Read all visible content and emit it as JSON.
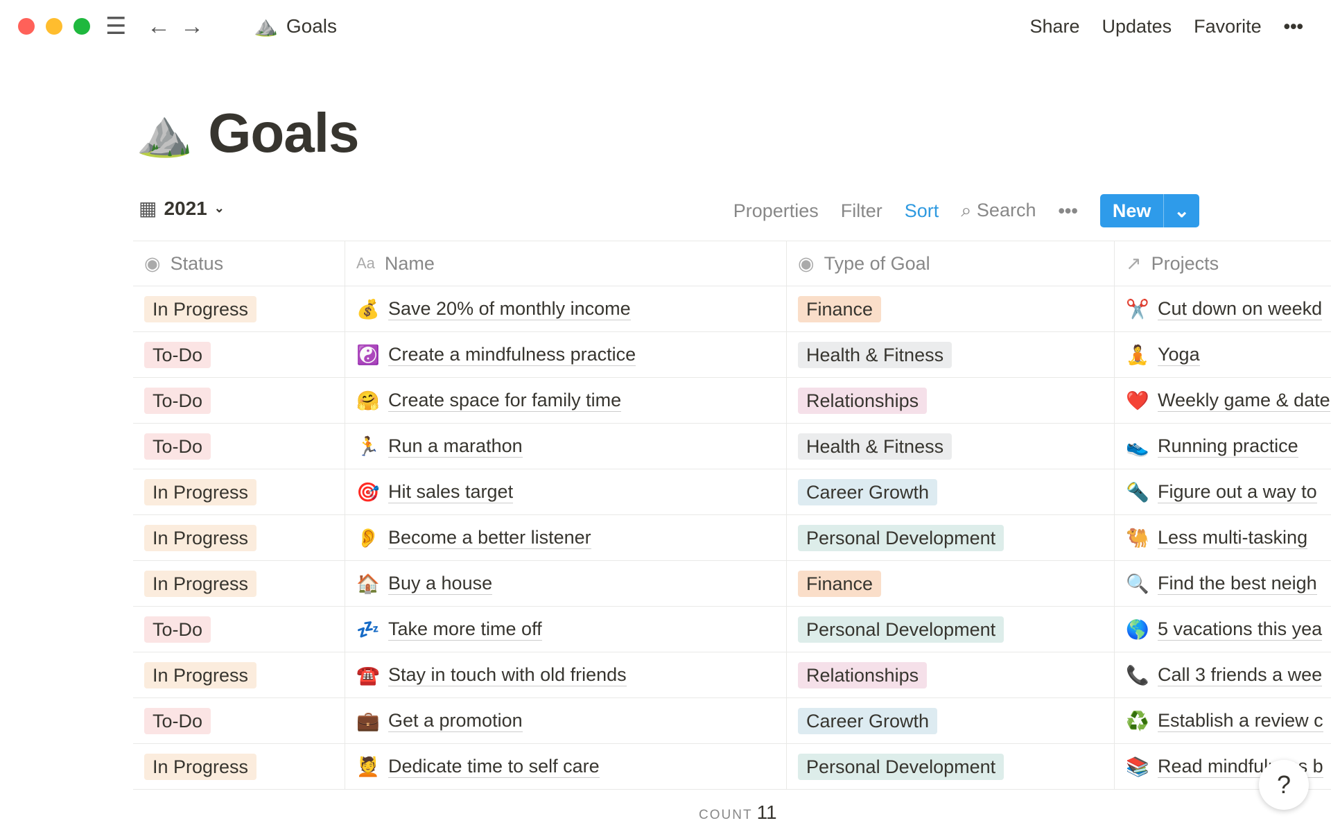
{
  "topbar": {
    "breadcrumb": "Goals",
    "breadcrumb_icon": "⛰️",
    "share": "Share",
    "updates": "Updates",
    "favorite": "Favorite",
    "more": "•••"
  },
  "page": {
    "icon": "⛰️",
    "title": "Goals"
  },
  "toolbar": {
    "view_name": "2021",
    "properties": "Properties",
    "filter": "Filter",
    "sort": "Sort",
    "search": "Search",
    "more": "•••",
    "new": "New"
  },
  "columns": [
    "Status",
    "Name",
    "Type of Goal",
    "Projects"
  ],
  "tag_colors": {
    "In Progress": "#fbecdd",
    "To-Do": "#fbe4e4",
    "Finance": "#fadec9",
    "Health & Fitness": "#ebeced",
    "Relationships": "#f5e0e9",
    "Career Growth": "#ddebf1",
    "Personal Development": "#ddedea"
  },
  "rows": [
    {
      "status": "In Progress",
      "icon": "💰",
      "name": "Save 20% of monthly income",
      "type": "Finance",
      "project_icon": "✂️",
      "project": "Cut down on weekd"
    },
    {
      "status": "To-Do",
      "icon": "☯️",
      "name": "Create a mindfulness practice",
      "type": "Health & Fitness",
      "project_icon": "🧘",
      "project": "Yoga"
    },
    {
      "status": "To-Do",
      "icon": "🤗",
      "name": "Create space for family time",
      "type": "Relationships",
      "project_icon": "❤️",
      "project": "Weekly game & date"
    },
    {
      "status": "To-Do",
      "icon": "🏃",
      "name": "Run a marathon",
      "type": "Health & Fitness",
      "project_icon": "👟",
      "project": "Running practice"
    },
    {
      "status": "In Progress",
      "icon": "🎯",
      "name": "Hit sales target",
      "type": "Career Growth",
      "project_icon": "🔦",
      "project": "Figure out a way to"
    },
    {
      "status": "In Progress",
      "icon": "👂",
      "name": "Become a better listener",
      "type": "Personal Development",
      "project_icon": "🐫",
      "project": "Less multi-tasking"
    },
    {
      "status": "In Progress",
      "icon": "🏠",
      "name": "Buy a house",
      "type": "Finance",
      "project_icon": "🔍",
      "project": "Find the best neigh"
    },
    {
      "status": "To-Do",
      "icon": "💤",
      "name": "Take more time off",
      "type": "Personal Development",
      "project_icon": "🌎",
      "project": "5 vacations this yea"
    },
    {
      "status": "In Progress",
      "icon": "☎️",
      "name": "Stay in touch with old friends",
      "type": "Relationships",
      "project_icon": "📞",
      "project": "Call 3 friends a wee"
    },
    {
      "status": "To-Do",
      "icon": "💼",
      "name": "Get a promotion",
      "type": "Career Growth",
      "project_icon": "♻️",
      "project": "Establish a review c"
    },
    {
      "status": "In Progress",
      "icon": "💆",
      "name": "Dedicate time to self care",
      "type": "Personal Development",
      "project_icon": "📚",
      "project": "Read mindfulness b"
    }
  ],
  "footer": {
    "count_label": "COUNT",
    "count": "11",
    "help": "?"
  }
}
